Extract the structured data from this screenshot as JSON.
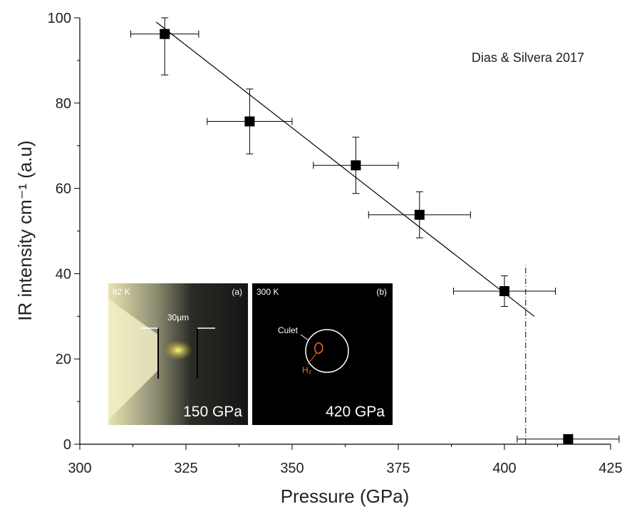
{
  "chart_data": {
    "type": "scatter",
    "annotation": "Dias & Silvera 2017",
    "x_label": "Pressure (GPa)",
    "y_label": "IR intensity cm⁻¹ (a.u)",
    "xlim": [
      300,
      425
    ],
    "ylim": [
      0,
      100
    ],
    "xticks": [
      300,
      325,
      350,
      375,
      400,
      425
    ],
    "yticks": [
      0,
      20,
      40,
      60,
      80,
      100
    ],
    "x_minor_ticks": [
      312.5,
      337.5,
      362.5,
      387.5,
      412.5
    ],
    "y_minor_ticks": [
      10,
      30,
      50,
      70,
      90
    ],
    "series": [
      {
        "color": "#000000",
        "x": [
          320,
          340,
          365,
          380,
          400,
          415
        ],
        "values": [
          96.2,
          75.7,
          65.4,
          53.8,
          35.9,
          1.2
        ],
        "xerr": [
          8,
          10,
          10,
          12,
          12,
          12
        ],
        "yerr": [
          9.6,
          7.6,
          6.6,
          5.4,
          3.6,
          0
        ]
      }
    ],
    "fit": {
      "x": [
        318,
        407
      ],
      "values": [
        99,
        30
      ]
    },
    "vline": {
      "x": 405,
      "top": 42
    },
    "insets": [
      {
        "temp": "82 K",
        "tag": "(a)",
        "scale": "30μm",
        "pressure": "150 GPa"
      },
      {
        "temp": "300 K",
        "tag": "(b)",
        "culet": "Culet",
        "sample": "H₂",
        "pressure": "420 GPa"
      }
    ]
  }
}
